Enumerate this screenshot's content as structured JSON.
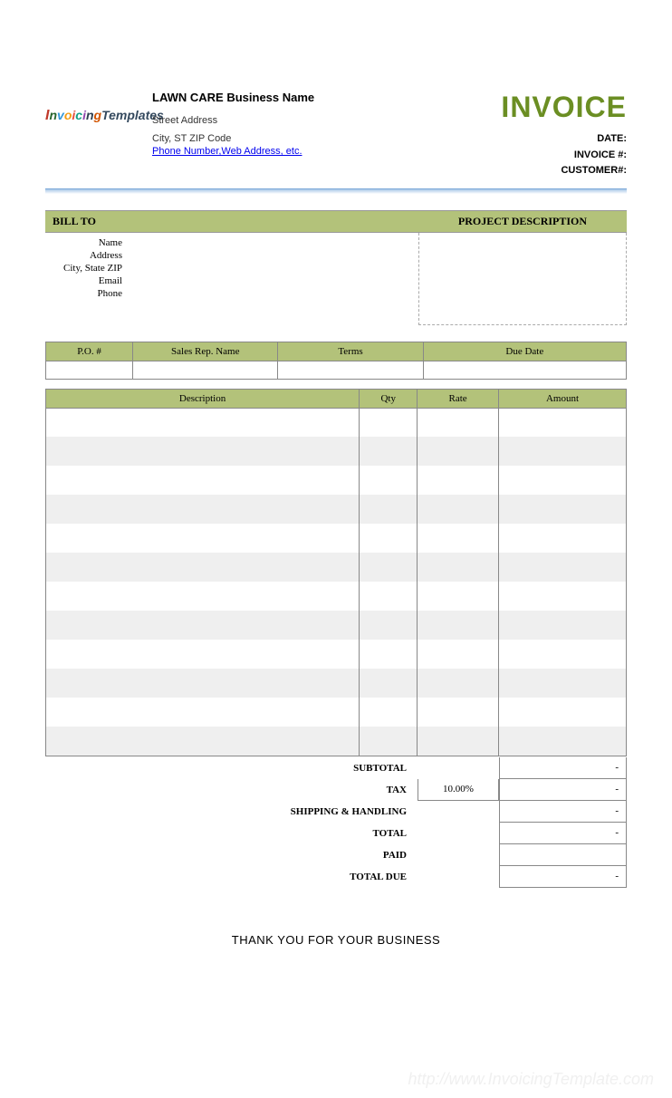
{
  "header": {
    "business_name": "LAWN CARE Business Name",
    "street": "Street Address",
    "city_state_zip": "City, ST  ZIP Code",
    "contact_link": "Phone Number,Web Address, etc.",
    "invoice_title": "INVOICE",
    "meta": {
      "date_label": "DATE:",
      "invoice_num_label": "INVOICE #:",
      "customer_num_label": "CUSTOMER#:"
    },
    "logo_text": "InvoicingTemplates"
  },
  "billto": {
    "header": "BILL TO",
    "fields": [
      "Name",
      "Address",
      "City, State ZIP",
      "Email",
      "Phone"
    ]
  },
  "project": {
    "header": "PROJECT DESCRIPTION"
  },
  "po_table": {
    "headers": [
      "P.O. #",
      "Sales Rep. Name",
      "Terms",
      "Due Date"
    ],
    "col_widths": [
      "15%",
      "25%",
      "25%",
      "35%"
    ]
  },
  "items": {
    "headers": [
      "Description",
      "Qty",
      "Rate",
      "Amount"
    ],
    "row_count": 12,
    "stripe_color": "#efefef",
    "header_bg": "#b3c27a"
  },
  "totals": {
    "rows": [
      {
        "label": "SUBTOTAL",
        "value": "-",
        "tax_cell": false
      },
      {
        "label": "TAX",
        "value": "-",
        "tax_cell": true,
        "tax_rate": "10.00%"
      },
      {
        "label": "SHIPPING & HANDLING",
        "value": "-",
        "tax_cell": false
      },
      {
        "label": "TOTAL",
        "value": "-",
        "tax_cell": false
      },
      {
        "label": "PAID",
        "value": "",
        "tax_cell": false
      },
      {
        "label": "TOTAL DUE",
        "value": "-",
        "tax_cell": false
      }
    ]
  },
  "footer": {
    "thank_you": "THANK YOU FOR YOUR BUSINESS",
    "watermark": "http://www.InvoicingTemplate.com"
  },
  "colors": {
    "olive_header": "#b3c27a",
    "olive_title": "#6b8e23",
    "stripe": "#efefef",
    "border": "#888888",
    "divider": "#a8c7e8",
    "link": "#0000ee"
  }
}
